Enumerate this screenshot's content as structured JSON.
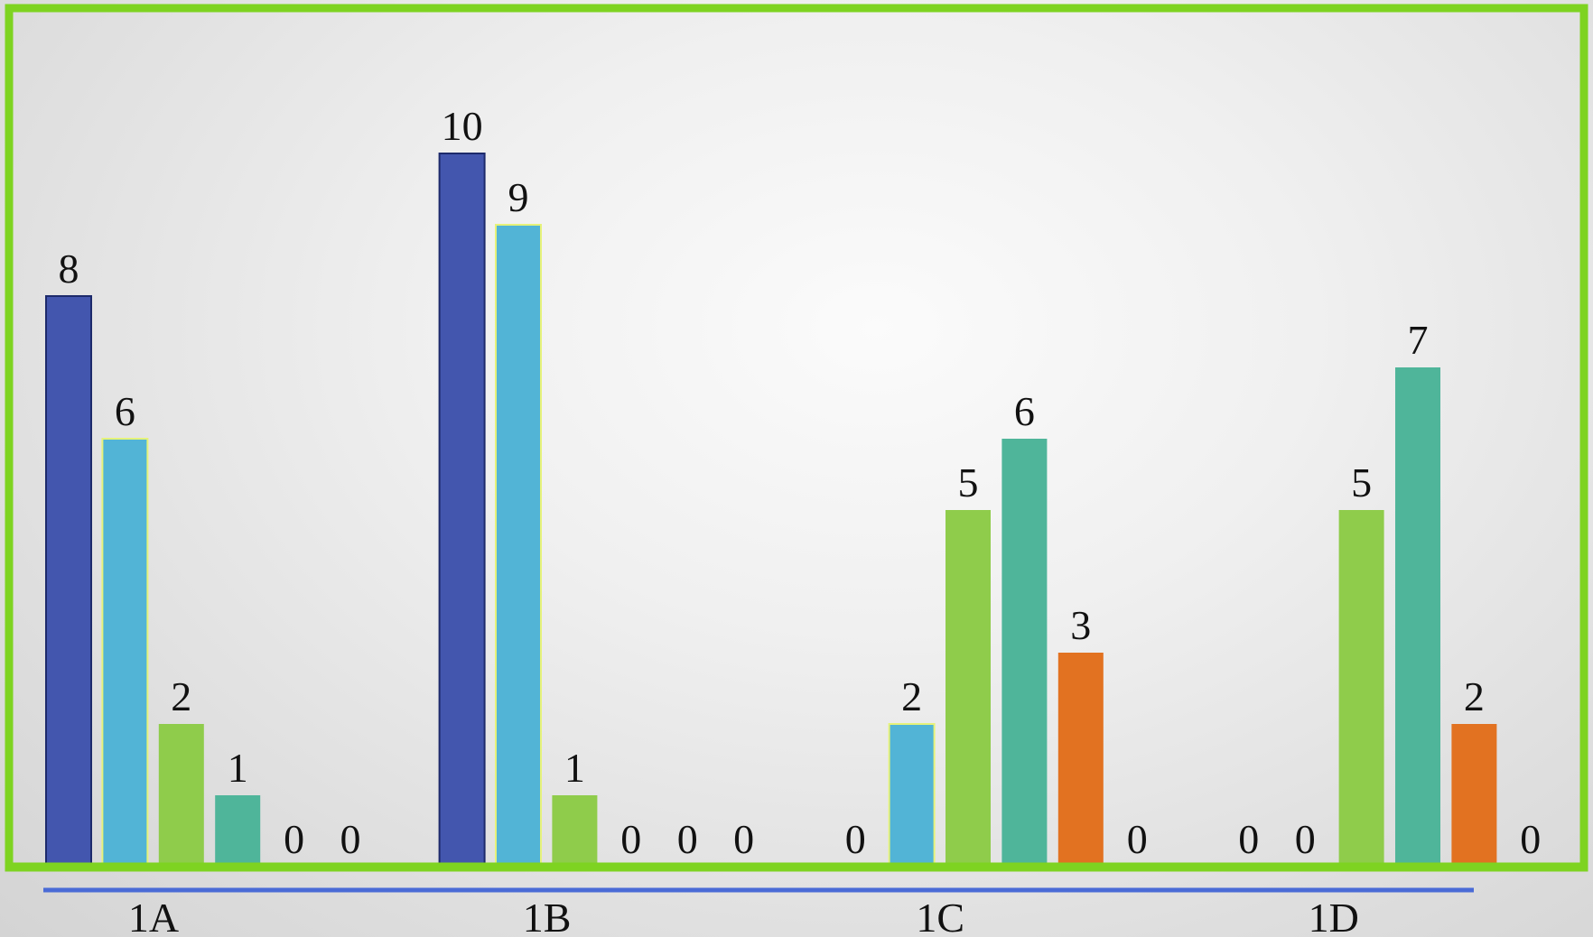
{
  "chart_data": {
    "type": "bar",
    "categories": [
      "1A",
      "1B",
      "1C",
      "1D"
    ],
    "series": [
      {
        "color": "#4356ae",
        "values": [
          8,
          10,
          0,
          0
        ]
      },
      {
        "color": "#52b4d6",
        "values": [
          6,
          9,
          2,
          0
        ]
      },
      {
        "color": "#8fcc4b",
        "values": [
          2,
          1,
          5,
          5
        ]
      },
      {
        "color": "#4fb59a",
        "values": [
          1,
          0,
          6,
          7
        ]
      },
      {
        "color": "#e27221",
        "values": [
          0,
          0,
          3,
          2
        ]
      },
      {
        "color": "#8fcc4b",
        "values": [
          0,
          0,
          0,
          0
        ]
      }
    ],
    "ylim": [
      0,
      10
    ],
    "data_labels": true,
    "legend": "none",
    "grid": false
  },
  "style": {
    "frame_color": "#7ed321",
    "axis_underline_color": "#4a6bd6"
  }
}
